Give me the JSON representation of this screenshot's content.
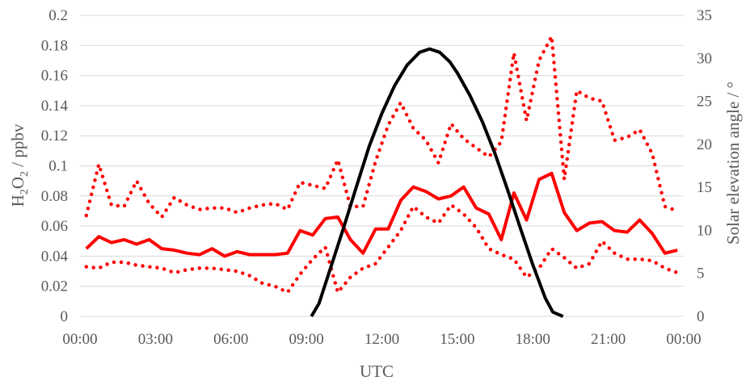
{
  "chart_data": {
    "type": "line",
    "xlabel": "UTC",
    "ylabel": {
      "main": "H",
      "sub1": "2",
      "mid": "O",
      "sub2": "2",
      "unit": " / ppbv"
    },
    "y2label": "Solar elevation angle / °",
    "xlim": [
      0,
      24
    ],
    "ylim": [
      0,
      0.2
    ],
    "y2lim": [
      0,
      35
    ],
    "grid": true,
    "x_tick_labels": [
      "00:00",
      "03:00",
      "06:00",
      "09:00",
      "12:00",
      "15:00",
      "18:00",
      "21:00",
      "00:00"
    ],
    "y_tick_labels": [
      "0",
      "0.02",
      "0.04",
      "0.06",
      "0.08",
      "0.1",
      "0.12",
      "0.14",
      "0.16",
      "0.18",
      "0.2"
    ],
    "y2_tick_labels": [
      "0",
      "5",
      "10",
      "15",
      "20",
      "25",
      "30",
      "35"
    ],
    "series": [
      {
        "axis": "left",
        "style": "solid",
        "color": "#ff0000",
        "x": [
          0.25,
          0.75,
          1.25,
          1.75,
          2.25,
          2.75,
          3.25,
          3.75,
          4.25,
          4.75,
          5.25,
          5.75,
          6.25,
          6.75,
          7.25,
          7.75,
          8.25,
          8.75,
          9.25,
          9.75,
          10.25,
          10.75,
          11.25,
          11.75,
          12.25,
          12.75,
          13.25,
          13.75,
          14.25,
          14.75,
          15.25,
          15.75,
          16.25,
          16.75,
          17.25,
          17.75,
          18.25,
          18.75,
          19.25,
          19.75,
          20.25,
          20.75,
          21.25,
          21.75,
          22.25,
          22.75,
          23.25,
          23.75
        ],
        "values": [
          0.045,
          0.053,
          0.049,
          0.051,
          0.048,
          0.051,
          0.045,
          0.044,
          0.042,
          0.041,
          0.045,
          0.04,
          0.043,
          0.041,
          0.041,
          0.041,
          0.042,
          0.057,
          0.054,
          0.065,
          0.066,
          0.051,
          0.042,
          0.058,
          0.058,
          0.077,
          0.086,
          0.083,
          0.078,
          0.08,
          0.086,
          0.072,
          0.068,
          0.051,
          0.082,
          0.064,
          0.091,
          0.095,
          0.069,
          0.057,
          0.062,
          0.063,
          0.057,
          0.056,
          0.064,
          0.055,
          0.042,
          0.044
        ]
      },
      {
        "axis": "left",
        "style": "dotted",
        "color": "#ff0000",
        "x": [
          0.25,
          0.75,
          1.25,
          1.75,
          2.25,
          2.75,
          3.25,
          3.75,
          4.25,
          4.75,
          5.25,
          5.75,
          6.25,
          6.75,
          7.25,
          7.75,
          8.25,
          8.75,
          9.25,
          9.75,
          10.25,
          10.75,
          11.25,
          11.75,
          12.25,
          12.75,
          13.25,
          13.75,
          14.25,
          14.75,
          15.25,
          15.75,
          16.25,
          16.75,
          17.25,
          17.75,
          18.25,
          18.75,
          19.25,
          19.75,
          20.25,
          20.75,
          21.25,
          21.75,
          22.25,
          22.75,
          23.25,
          23.75
        ],
        "values": [
          0.067,
          0.101,
          0.074,
          0.073,
          0.09,
          0.075,
          0.066,
          0.079,
          0.074,
          0.071,
          0.072,
          0.072,
          0.069,
          0.072,
          0.074,
          0.075,
          0.071,
          0.089,
          0.087,
          0.085,
          0.104,
          0.073,
          0.073,
          0.103,
          0.127,
          0.142,
          0.125,
          0.117,
          0.102,
          0.128,
          0.118,
          0.112,
          0.106,
          0.116,
          0.175,
          0.13,
          0.17,
          0.186,
          0.091,
          0.15,
          0.145,
          0.143,
          0.117,
          0.119,
          0.124,
          0.108,
          0.073,
          0.07
        ]
      },
      {
        "axis": "left",
        "style": "dotted",
        "color": "#ff0000",
        "x": [
          0.25,
          0.75,
          1.25,
          1.75,
          2.25,
          2.75,
          3.25,
          3.75,
          4.25,
          4.75,
          5.25,
          5.75,
          6.25,
          6.75,
          7.25,
          7.75,
          8.25,
          8.75,
          9.25,
          9.75,
          10.25,
          10.75,
          11.25,
          11.75,
          12.25,
          12.75,
          13.25,
          13.75,
          14.25,
          14.75,
          15.25,
          15.75,
          16.25,
          16.75,
          17.25,
          17.75,
          18.25,
          18.75,
          19.25,
          19.75,
          20.25,
          20.75,
          21.25,
          21.75,
          22.25,
          22.75,
          23.25,
          23.75
        ],
        "values": [
          0.033,
          0.032,
          0.036,
          0.036,
          0.034,
          0.033,
          0.032,
          0.029,
          0.031,
          0.032,
          0.032,
          0.031,
          0.03,
          0.027,
          0.022,
          0.02,
          0.016,
          0.028,
          0.038,
          0.046,
          0.016,
          0.026,
          0.032,
          0.035,
          0.046,
          0.057,
          0.073,
          0.066,
          0.062,
          0.074,
          0.068,
          0.059,
          0.045,
          0.041,
          0.038,
          0.026,
          0.032,
          0.045,
          0.039,
          0.032,
          0.035,
          0.05,
          0.042,
          0.038,
          0.038,
          0.037,
          0.032,
          0.029
        ]
      },
      {
        "axis": "right",
        "style": "solid",
        "color": "#000000",
        "x": [
          9.2,
          9.5,
          10.0,
          10.5,
          11.0,
          11.5,
          12.0,
          12.5,
          13.0,
          13.5,
          13.9,
          14.3,
          14.7,
          15.0,
          15.5,
          16.0,
          16.5,
          17.0,
          17.5,
          18.0,
          18.5,
          18.8,
          19.2
        ],
        "values": [
          0.0,
          1.5,
          6.0,
          10.5,
          15.2,
          19.8,
          23.6,
          26.8,
          29.2,
          30.7,
          31.1,
          30.7,
          29.6,
          28.3,
          25.7,
          22.6,
          18.9,
          14.7,
          10.3,
          6.0,
          2.1,
          0.5,
          0.0
        ]
      }
    ]
  }
}
